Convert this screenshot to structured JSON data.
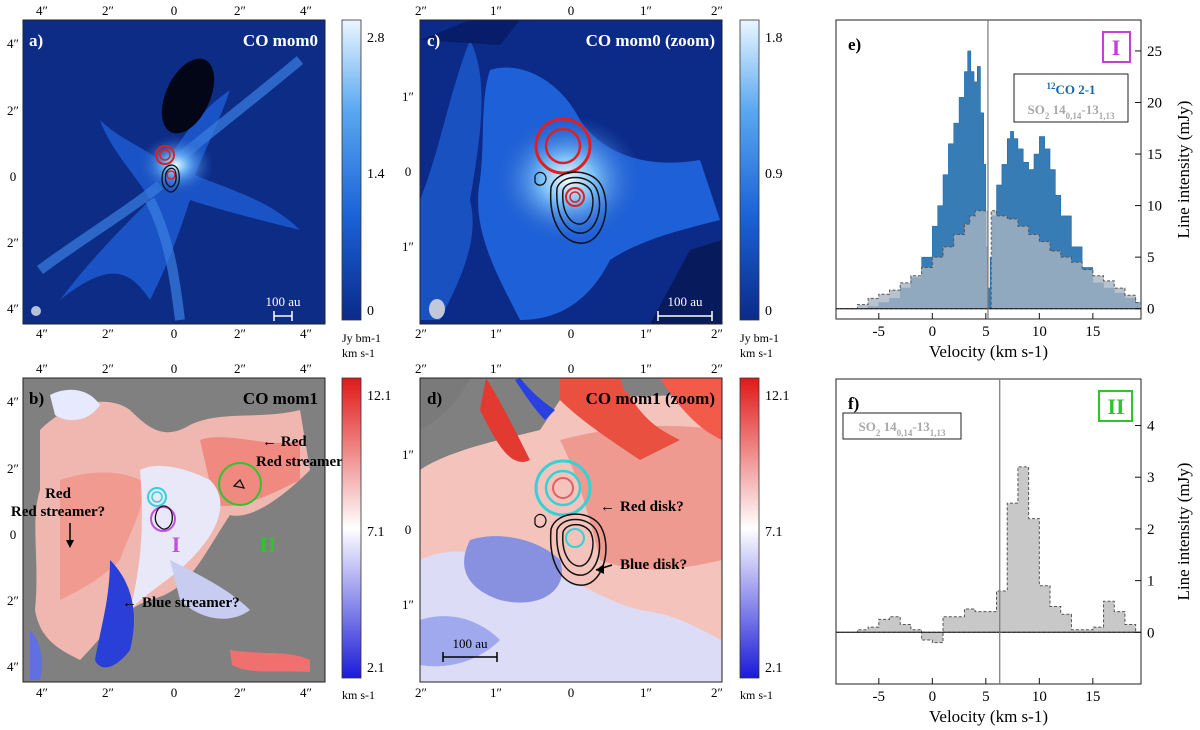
{
  "chart_data": [
    {
      "type": "heatmap",
      "panel": "a)",
      "title": "CO mom0",
      "colorbar": {
        "ticks": [
          "2.8",
          "1.4",
          "0"
        ],
        "unit_line1": "Jy bm-1",
        "unit_line2": "km s-1",
        "range": [
          0,
          2.8
        ]
      },
      "top_ticks": [
        "4″",
        "2″",
        "0",
        "2″",
        "4″"
      ],
      "bottom_ticks": [
        "4″",
        "2″",
        "0",
        "2″",
        "4″"
      ],
      "left_ticks": [
        "4″",
        "2″",
        "0",
        "2″",
        "4″"
      ],
      "scalebar": "100 au"
    },
    {
      "type": "heatmap",
      "panel": "b)",
      "title": "CO mom1",
      "colorbar": {
        "ticks": [
          "12.1",
          "7.1",
          "2.1"
        ],
        "unit": "km s-1",
        "range": [
          2.1,
          12.1
        ]
      },
      "top_ticks": [
        "4″",
        "2″",
        "0",
        "2″",
        "4″"
      ],
      "bottom_ticks": [
        "4″",
        "2″",
        "0",
        "2″",
        "4″"
      ],
      "left_ticks": [
        "4″",
        "2″",
        "0",
        "2″",
        "4″"
      ],
      "annotations": [
        "Red streamer?",
        "Red streamer?",
        "Blue streamer?",
        "I",
        "II"
      ]
    },
    {
      "type": "heatmap",
      "panel": "c)",
      "title": "CO mom0 (zoom)",
      "colorbar": {
        "ticks": [
          "1.8",
          "0.9",
          "0"
        ],
        "unit_line1": "Jy bm-1",
        "unit_line2": "km s-1",
        "range": [
          0,
          1.8
        ]
      },
      "top_ticks": [
        "2″",
        "1″",
        "0",
        "1″",
        "2″"
      ],
      "bottom_ticks": [
        "2″",
        "1″",
        "0",
        "1″",
        "2″"
      ],
      "left_ticks": [
        "1″",
        "0",
        "1″"
      ],
      "scalebar": "100 au"
    },
    {
      "type": "heatmap",
      "panel": "d)",
      "title": "CO mom1 (zoom)",
      "colorbar": {
        "ticks": [
          "12.1",
          "7.1",
          "2.1"
        ],
        "unit": "km s-1",
        "range": [
          2.1,
          12.1
        ]
      },
      "top_ticks": [
        "2″",
        "1″",
        "0",
        "1″",
        "2″"
      ],
      "bottom_ticks": [
        "2″",
        "1″",
        "0",
        "1″",
        "2″"
      ],
      "left_ticks": [
        "1″",
        "0",
        "1″"
      ],
      "annotations": [
        "Red disk?",
        "Blue disk?"
      ],
      "scalebar": "100 au"
    },
    {
      "type": "area",
      "panel": "e)",
      "marker": "I",
      "xlabel": "Velocity (km s-1)",
      "ylabel": "Line intensity (mJy)",
      "xlim": [
        -9,
        19.5
      ],
      "ylim": [
        -1,
        28
      ],
      "xticks": [
        -5,
        0,
        5,
        10,
        15
      ],
      "yticks": [
        0,
        5,
        10,
        15,
        20,
        25
      ],
      "vline": 5.2,
      "series": [
        {
          "name": "12CO 2-1",
          "color": "#1565a8",
          "x": [
            -9,
            -8,
            -7,
            -6,
            -5,
            -4,
            -3,
            -2,
            -1,
            0,
            0.5,
            1,
            1.5,
            2,
            2.5,
            3,
            3.3,
            3.6,
            3.9,
            4.2,
            4.5,
            4.8,
            5.0,
            5.2,
            5.4,
            5.6,
            6.0,
            6.5,
            7.0,
            7.3,
            7.6,
            8.0,
            8.5,
            9.0,
            9.5,
            10.0,
            10.5,
            11.0,
            11.5,
            12.0,
            13.0,
            14.0,
            15.0,
            16.0,
            17.0,
            18.0,
            19.0
          ],
          "y": [
            0,
            0,
            0,
            0.2,
            0.6,
            1,
            2,
            3,
            5,
            8,
            10,
            13,
            16,
            18,
            20.5,
            23,
            25,
            23,
            22,
            23.5,
            19,
            14,
            6,
            2,
            5,
            9,
            12,
            14,
            16.5,
            17.2,
            16.5,
            15.5,
            14.2,
            13.5,
            15,
            16.7,
            15.5,
            13.5,
            11,
            9,
            6,
            4,
            2.5,
            2,
            1.5,
            1,
            0.6
          ]
        },
        {
          "name": "SO2 140,14-131,13",
          "color": "#a8b4c2",
          "x": [
            -9,
            -8,
            -7,
            -6,
            -5,
            -4,
            -3,
            -2,
            -1,
            0,
            1,
            2,
            3,
            3.5,
            4,
            4.5,
            5.0,
            5.2,
            5.5,
            6,
            7,
            8,
            9,
            10,
            11,
            12,
            13,
            14,
            15,
            16,
            17,
            18,
            19
          ],
          "y": [
            0,
            0,
            0.4,
            1,
            1.4,
            1.8,
            2.5,
            3.2,
            4,
            5,
            6,
            7.2,
            8.2,
            9,
            9.5,
            9.5,
            9.5,
            0,
            9.5,
            9,
            8.7,
            8,
            7.2,
            6.5,
            5.6,
            5,
            4.5,
            3.8,
            3.2,
            2.7,
            2,
            1.3,
            0.6
          ]
        }
      ],
      "legend": [
        "12CO 2-1",
        "SO2 140,14-131,13"
      ]
    },
    {
      "type": "area",
      "panel": "f)",
      "marker": "II",
      "xlabel": "Velocity (km s-1)",
      "ylabel": "Line intensity (mJy)",
      "xlim": [
        -9,
        19.5
      ],
      "ylim": [
        -1,
        4.9
      ],
      "xticks": [
        -5,
        0,
        5,
        10,
        15
      ],
      "yticks": [
        0,
        1,
        2,
        3,
        4
      ],
      "vline": 6.3,
      "series": [
        {
          "name": "SO2 140,14-131,13",
          "color": "#c8c8c8",
          "x": [
            -9,
            -8,
            -7,
            -6,
            -5,
            -4,
            -3,
            -2,
            -1,
            0,
            1,
            2,
            3,
            4,
            5,
            6,
            7,
            8,
            9,
            10,
            11,
            12,
            13,
            14,
            15,
            16,
            17,
            18,
            19
          ],
          "y": [
            0,
            0,
            0.05,
            0.1,
            0.25,
            0.3,
            0.15,
            0.05,
            -0.15,
            -0.2,
            0.3,
            0.3,
            0.45,
            0.4,
            0.4,
            0.8,
            2.5,
            3.2,
            2.2,
            0.9,
            0.5,
            0.35,
            0.05,
            0.05,
            0.1,
            0.6,
            0.4,
            0.15,
            0
          ]
        }
      ],
      "legend": [
        "SO2 140,14-131,13"
      ]
    }
  ]
}
